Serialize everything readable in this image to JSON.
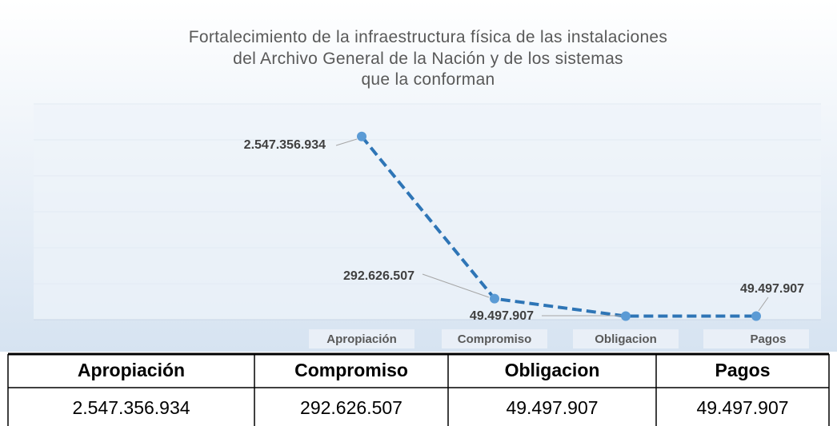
{
  "chart_data": {
    "type": "line",
    "title": "Fortalecimiento de la infraestructura física de las instalaciones del Archivo General de la Nación y de los sistemas que la conforman",
    "categories": [
      "Apropiación",
      "Compromiso",
      "Obligacion",
      "Pagos"
    ],
    "values": [
      2547356934,
      292626507,
      49497907,
      49497907
    ],
    "value_labels": [
      "2.547.356.934",
      "292.626.507",
      "49.497.907",
      "49.497.907"
    ],
    "color": "#2e75b6",
    "ylim": [
      0,
      3000000000
    ],
    "yticks": [
      0,
      500000000,
      1000000000,
      1500000000,
      2000000000,
      2500000000,
      3000000000
    ],
    "grid": true
  }
}
